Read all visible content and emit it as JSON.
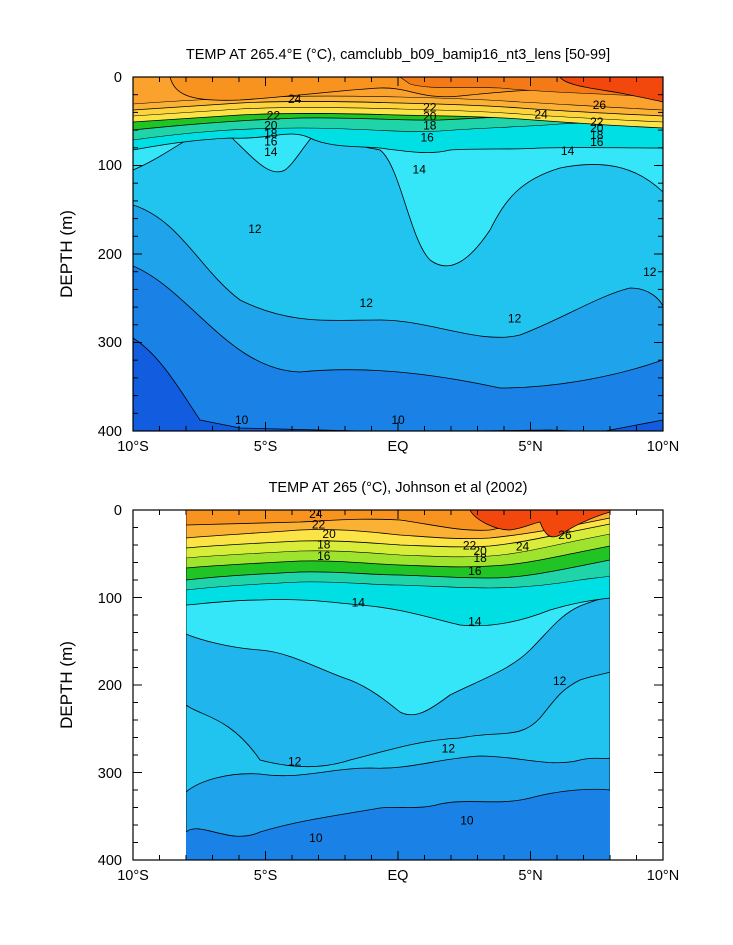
{
  "chart_data": [
    {
      "type": "heatmap",
      "title": "TEMP AT 265.4°E (°C), camclubb_b09_bamip16_nt3_lens [50-99]",
      "ylabel": "DEPTH (m)",
      "xlabel": "",
      "xlim": [
        -10,
        10
      ],
      "ylim": [
        0,
        400
      ],
      "y_inverted": true,
      "x_tick_labels": [
        "10°S",
        "5°S",
        "EQ",
        "5°N",
        "10°N"
      ],
      "x_tick_values": [
        -10,
        -5,
        0,
        5,
        10
      ],
      "y_tick_labels": [
        "0",
        "100",
        "200",
        "300",
        "400"
      ],
      "y_tick_values": [
        0,
        100,
        200,
        300,
        400
      ],
      "data_extent": [
        -10,
        10
      ],
      "contour_labels": [
        {
          "text": "24",
          "lat": -3.9,
          "depth": 28
        },
        {
          "text": "26",
          "lat": 7.6,
          "depth": 35
        },
        {
          "text": "24",
          "lat": 5.4,
          "depth": 46
        },
        {
          "text": "22",
          "lat": -4.7,
          "depth": 47
        },
        {
          "text": "22",
          "lat": 1.2,
          "depth": 38
        },
        {
          "text": "20",
          "lat": 1.2,
          "depth": 48
        },
        {
          "text": "18",
          "lat": 1.2,
          "depth": 58
        },
        {
          "text": "22",
          "lat": 7.5,
          "depth": 54
        },
        {
          "text": "20",
          "lat": 7.5,
          "depth": 61
        },
        {
          "text": "18",
          "lat": 7.5,
          "depth": 69
        },
        {
          "text": "16",
          "lat": 7.5,
          "depth": 77
        },
        {
          "text": "20",
          "lat": -4.8,
          "depth": 58
        },
        {
          "text": "18",
          "lat": -4.8,
          "depth": 67
        },
        {
          "text": "16",
          "lat": -4.8,
          "depth": 76
        },
        {
          "text": "16",
          "lat": 1.1,
          "depth": 72
        },
        {
          "text": "14",
          "lat": -4.8,
          "depth": 88
        },
        {
          "text": "14",
          "lat": 6.4,
          "depth": 87
        },
        {
          "text": "14",
          "lat": 0.8,
          "depth": 108
        },
        {
          "text": "12",
          "lat": -5.4,
          "depth": 175
        },
        {
          "text": "12",
          "lat": -1.2,
          "depth": 259
        },
        {
          "text": "12",
          "lat": 4.4,
          "depth": 276
        },
        {
          "text": "12",
          "lat": 9.5,
          "depth": 224
        },
        {
          "text": "10",
          "lat": -5.9,
          "depth": 391
        },
        {
          "text": "10",
          "lat": 0,
          "depth": 391
        }
      ]
    },
    {
      "type": "heatmap",
      "title": "TEMP AT 265 (°C), Johnson et al (2002)",
      "ylabel": "DEPTH (m)",
      "xlabel": "",
      "xlim": [
        -10,
        10
      ],
      "ylim": [
        0,
        400
      ],
      "y_inverted": true,
      "x_tick_labels": [
        "10°S",
        "5°S",
        "EQ",
        "5°N",
        "10°N"
      ],
      "x_tick_values": [
        -10,
        -5,
        0,
        5,
        10
      ],
      "y_tick_labels": [
        "0",
        "100",
        "200",
        "300",
        "400"
      ],
      "y_tick_values": [
        0,
        100,
        200,
        300,
        400
      ],
      "data_extent": [
        -8,
        8
      ],
      "contour_labels": [
        {
          "text": "24",
          "lat": -3.1,
          "depth": 8
        },
        {
          "text": "22",
          "lat": -3.0,
          "depth": 20
        },
        {
          "text": "20",
          "lat": -2.6,
          "depth": 31
        },
        {
          "text": "18",
          "lat": -2.8,
          "depth": 43
        },
        {
          "text": "16",
          "lat": -2.8,
          "depth": 56
        },
        {
          "text": "22",
          "lat": 2.7,
          "depth": 44
        },
        {
          "text": "20",
          "lat": 3.1,
          "depth": 50
        },
        {
          "text": "18",
          "lat": 3.1,
          "depth": 58
        },
        {
          "text": "16",
          "lat": 2.9,
          "depth": 73
        },
        {
          "text": "24",
          "lat": 4.7,
          "depth": 45
        },
        {
          "text": "26",
          "lat": 6.3,
          "depth": 32
        },
        {
          "text": "14",
          "lat": -1.5,
          "depth": 109
        },
        {
          "text": "14",
          "lat": 2.9,
          "depth": 131
        },
        {
          "text": "12",
          "lat": 6.1,
          "depth": 199
        },
        {
          "text": "12",
          "lat": 1.9,
          "depth": 276
        },
        {
          "text": "12",
          "lat": -3.9,
          "depth": 291
        },
        {
          "text": "10",
          "lat": -3.1,
          "depth": 378
        },
        {
          "text": "10",
          "lat": 2.6,
          "depth": 358
        }
      ]
    }
  ],
  "colors": {
    "t26": "#f2480e",
    "t24": "#f7931e",
    "t22": "#fbb134",
    "t20": "#fde446",
    "t18": "#9ee42f",
    "t16": "#20c424",
    "t14": "#00dfe3",
    "t13": "#34e6f7",
    "t12": "#20c4ee",
    "t11": "#1fa3ea",
    "t10": "#1a82e6",
    "t9": "#125ce0"
  }
}
